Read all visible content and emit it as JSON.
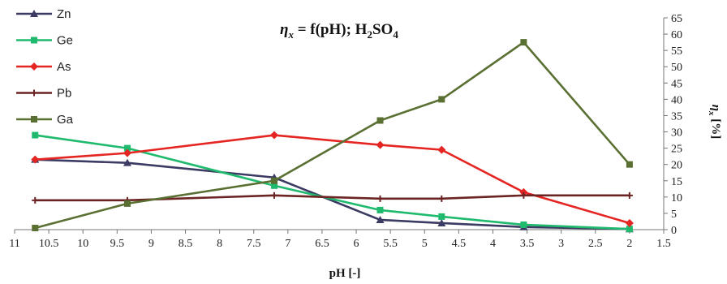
{
  "chart_data": {
    "type": "line",
    "title_parts": {
      "eta": "η",
      "sub_x": "x",
      "mid": " = f(pH);  H",
      "sub_2": "2",
      "so": "SO",
      "sub_4": "4"
    },
    "xlabel": "pH [-]",
    "ylabel_parts": {
      "eta": "η",
      "sub_x": "x",
      "unit": " [%]"
    },
    "xlim": [
      11,
      1.5
    ],
    "x_reversed": true,
    "ylim": [
      0,
      65
    ],
    "x_ticks": [
      "11",
      "10.5",
      "10",
      "9.5",
      "9",
      "8.5",
      "8",
      "7.5",
      "7",
      "6.5",
      "6",
      "5.5",
      "5",
      "4.5",
      "4",
      "3.5",
      "3",
      "2.5",
      "2",
      "1.5"
    ],
    "y_ticks": [
      "0",
      "5",
      "10",
      "15",
      "20",
      "25",
      "30",
      "35",
      "40",
      "45",
      "50",
      "55",
      "60",
      "65"
    ],
    "grid": false,
    "legend_placement": "top-left",
    "x": [
      10.7,
      9.35,
      7.2,
      5.65,
      4.75,
      3.55,
      2.0
    ],
    "series": [
      {
        "name": "Zn",
        "color": "#3b3b63",
        "marker": "triangle",
        "values": [
          21.5,
          20.5,
          16.0,
          3.0,
          2.0,
          0.8,
          0.2
        ]
      },
      {
        "name": "Ge",
        "color": "#1fba6e",
        "marker": "square",
        "values": [
          29.0,
          25.0,
          13.5,
          6.0,
          4.0,
          1.5,
          0.2
        ]
      },
      {
        "name": "As",
        "color": "#e52521",
        "marker": "diamond",
        "values": [
          21.5,
          23.5,
          29.0,
          26.0,
          24.5,
          11.5,
          2.0
        ]
      },
      {
        "name": "Pb",
        "color": "#6b2323",
        "marker": "plus",
        "values": [
          9.0,
          9.0,
          10.5,
          9.5,
          9.5,
          10.5,
          10.5
        ]
      },
      {
        "name": "Ga",
        "color": "#5a7033",
        "marker": "square",
        "values": [
          0.5,
          8.0,
          15.0,
          33.5,
          40.0,
          57.5,
          20.0
        ]
      }
    ]
  }
}
